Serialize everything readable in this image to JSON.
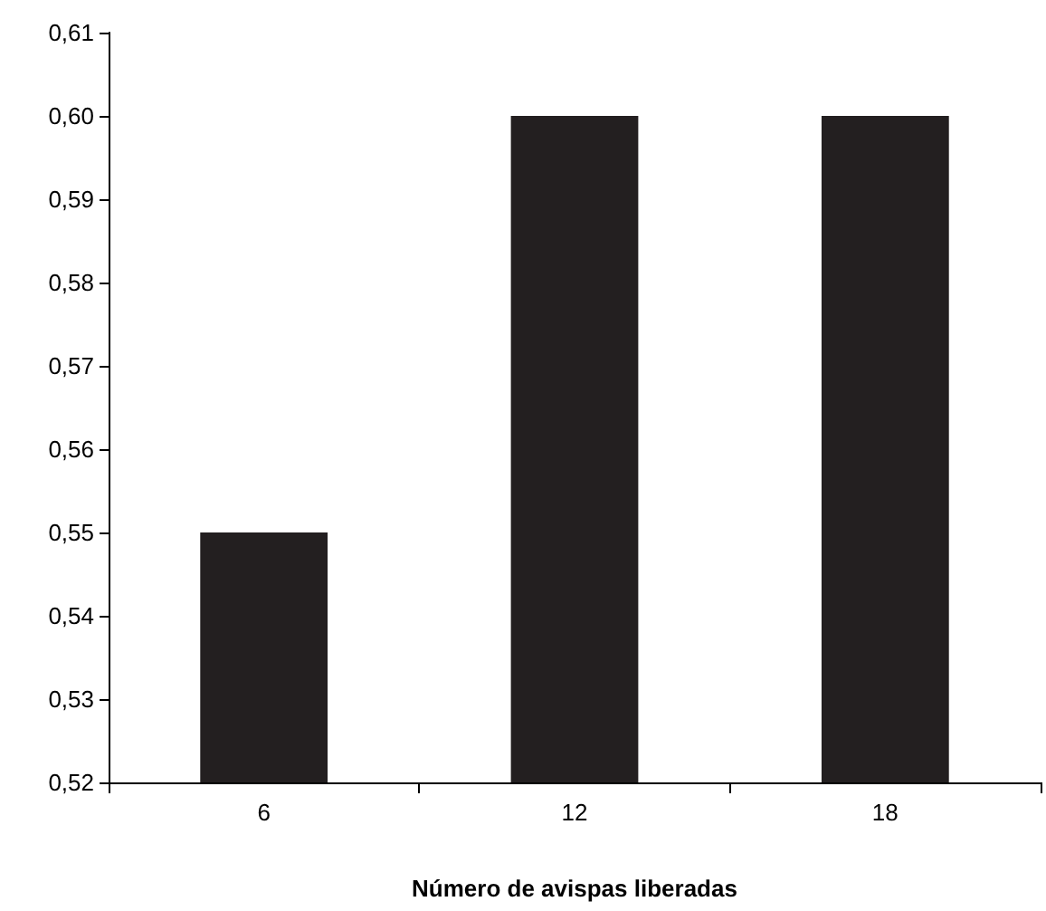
{
  "chart_data": {
    "type": "bar",
    "xlabel": "Número de avispas liberadas",
    "categories": [
      "6",
      "12",
      "18"
    ],
    "values": [
      0.55,
      0.6,
      0.6
    ],
    "color": "#231f20",
    "ylim": [
      0.52,
      0.61
    ],
    "yticks": [
      {
        "value": 0.52,
        "label": "0,52"
      },
      {
        "value": 0.53,
        "label": "0,53"
      },
      {
        "value": 0.54,
        "label": "0,54"
      },
      {
        "value": 0.55,
        "label": "0,55"
      },
      {
        "value": 0.56,
        "label": "0,56"
      },
      {
        "value": 0.57,
        "label": "0,57"
      },
      {
        "value": 0.58,
        "label": "0,58"
      },
      {
        "value": 0.59,
        "label": "0,59"
      },
      {
        "value": 0.6,
        "label": "0,60"
      },
      {
        "value": 0.61,
        "label": "0,61"
      }
    ],
    "grid": false
  }
}
